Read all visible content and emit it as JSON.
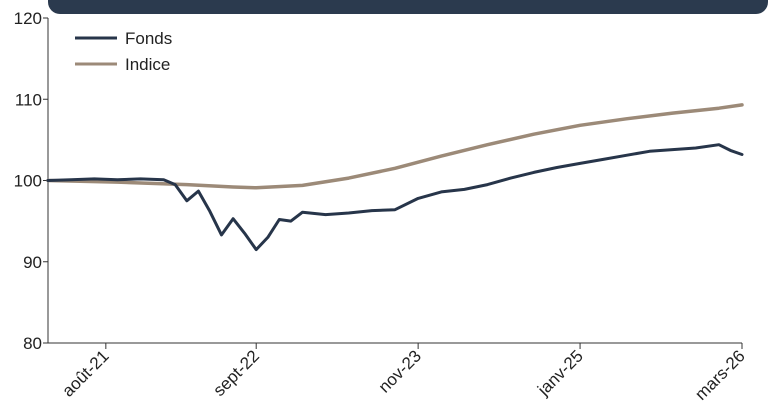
{
  "chart_data": {
    "type": "line",
    "title": "",
    "xlabel": "",
    "ylabel": "",
    "ylim": [
      80,
      120
    ],
    "yticks": [
      80,
      90,
      100,
      110,
      120
    ],
    "x_ticks": [
      "août-21",
      "sept-22",
      "nov-23",
      "janv-25",
      "mars-26"
    ],
    "legend_position": "top-left",
    "grid": false,
    "x_domain": [
      "2021-03",
      "2026-03"
    ],
    "series": [
      {
        "name": "Fonds",
        "color": "#27354a",
        "points": [
          [
            "2021-03",
            100.0
          ],
          [
            "2021-05",
            100.1
          ],
          [
            "2021-07",
            100.2
          ],
          [
            "2021-09",
            100.1
          ],
          [
            "2021-11",
            100.2
          ],
          [
            "2022-01",
            100.1
          ],
          [
            "2022-02",
            99.5
          ],
          [
            "2022-03",
            97.5
          ],
          [
            "2022-04",
            98.7
          ],
          [
            "2022-05",
            96.2
          ],
          [
            "2022-06",
            93.3
          ],
          [
            "2022-07",
            95.3
          ],
          [
            "2022-08",
            93.5
          ],
          [
            "2022-09",
            91.5
          ],
          [
            "2022-10",
            93.0
          ],
          [
            "2022-11",
            95.2
          ],
          [
            "2022-12",
            95.0
          ],
          [
            "2023-01",
            96.1
          ],
          [
            "2023-03",
            95.8
          ],
          [
            "2023-05",
            96.0
          ],
          [
            "2023-07",
            96.3
          ],
          [
            "2023-09",
            96.4
          ],
          [
            "2023-11",
            97.8
          ],
          [
            "2024-01",
            98.6
          ],
          [
            "2024-03",
            98.9
          ],
          [
            "2024-05",
            99.5
          ],
          [
            "2024-07",
            100.3
          ],
          [
            "2024-09",
            101.0
          ],
          [
            "2024-11",
            101.6
          ],
          [
            "2025-01",
            102.1
          ],
          [
            "2025-03",
            102.6
          ],
          [
            "2025-05",
            103.1
          ],
          [
            "2025-07",
            103.6
          ],
          [
            "2025-09",
            103.8
          ],
          [
            "2025-11",
            104.0
          ],
          [
            "2026-01",
            104.4
          ],
          [
            "2026-02",
            103.7
          ],
          [
            "2026-03",
            103.2
          ]
        ]
      },
      {
        "name": "Indice",
        "color": "#9c8a78",
        "points": [
          [
            "2021-03",
            100.0
          ],
          [
            "2021-09",
            99.8
          ],
          [
            "2022-03",
            99.5
          ],
          [
            "2022-07",
            99.2
          ],
          [
            "2022-09",
            99.1
          ],
          [
            "2023-01",
            99.4
          ],
          [
            "2023-05",
            100.3
          ],
          [
            "2023-09",
            101.5
          ],
          [
            "2024-01",
            103.0
          ],
          [
            "2024-05",
            104.4
          ],
          [
            "2024-09",
            105.7
          ],
          [
            "2025-01",
            106.8
          ],
          [
            "2025-05",
            107.6
          ],
          [
            "2025-09",
            108.3
          ],
          [
            "2026-01",
            108.9
          ],
          [
            "2026-03",
            109.3
          ]
        ]
      }
    ]
  }
}
